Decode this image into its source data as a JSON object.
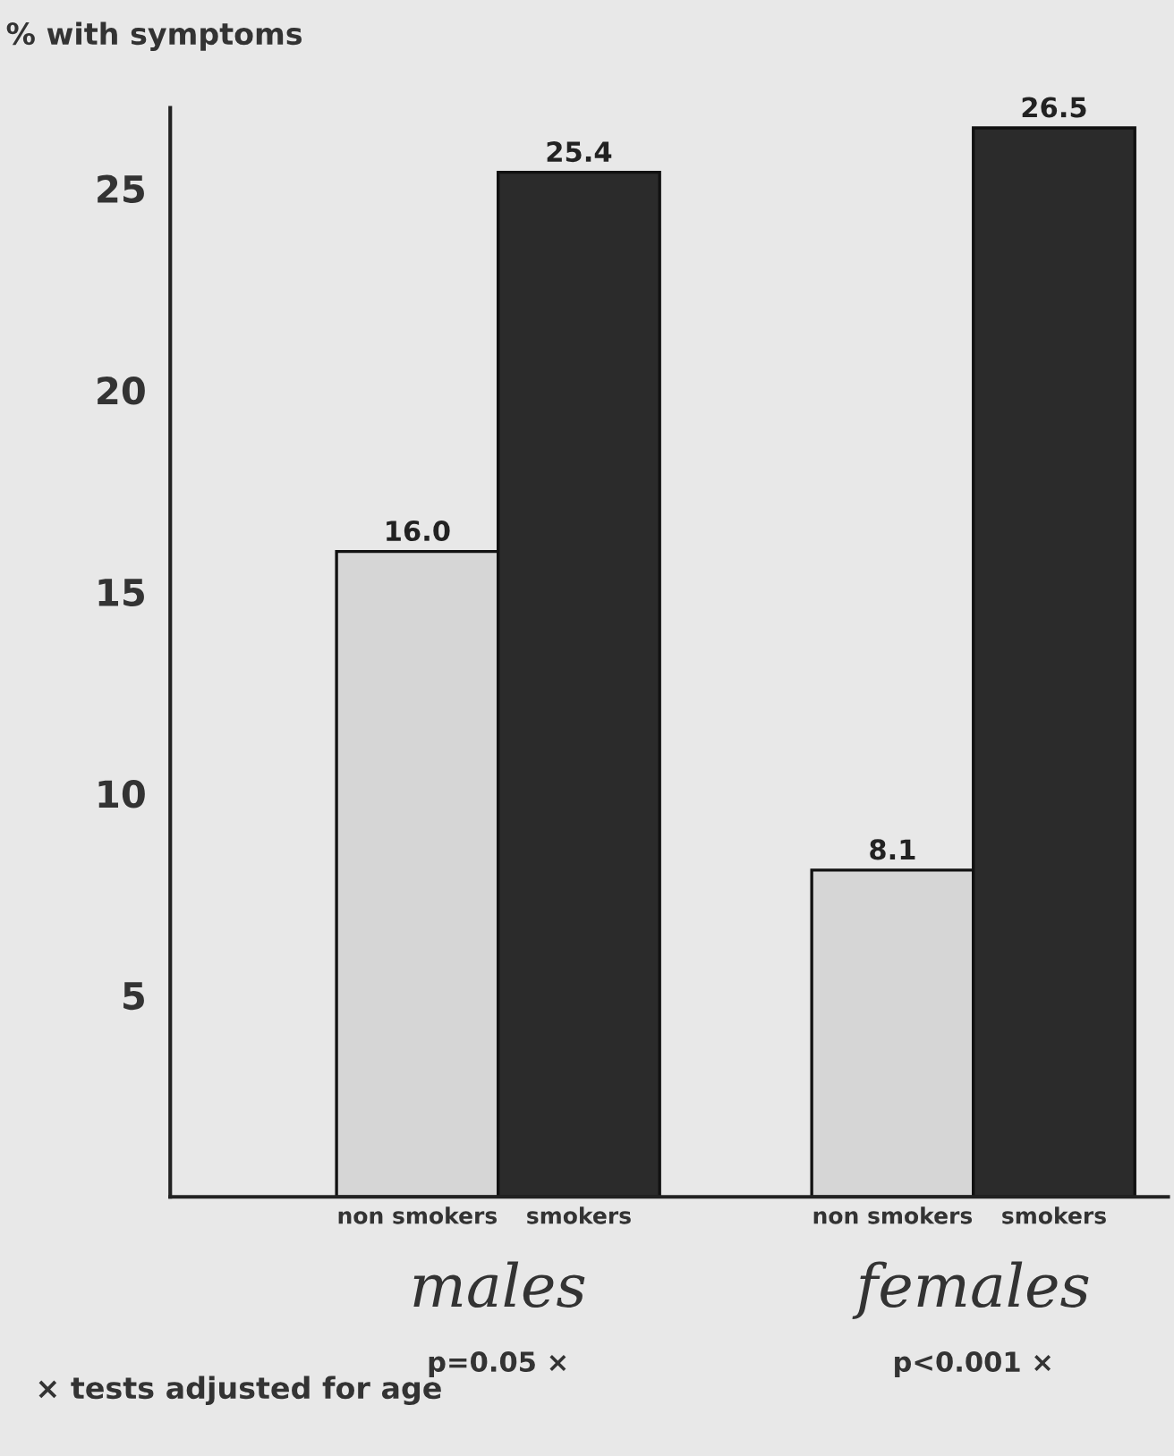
{
  "chart_data": {
    "type": "bar",
    "ylabel": "% with symptoms",
    "categories": [
      "males",
      "females"
    ],
    "series": [
      {
        "name": "non smokers",
        "color": "#d6d6d6",
        "values": [
          16.0,
          8.1
        ],
        "value_labels": [
          "16.0",
          "8.1"
        ]
      },
      {
        "name": "smokers",
        "color": "#2b2b2b",
        "values": [
          25.4,
          26.5
        ],
        "value_labels": [
          "25.4",
          "26.5"
        ]
      }
    ],
    "ylim": [
      0,
      27
    ],
    "yticks": [
      5,
      10,
      15,
      20,
      25
    ],
    "grid": false,
    "legend": false,
    "annotations": [
      "p=0.05 ×",
      "p<0.001 ×",
      "× tests adjusted for age"
    ]
  }
}
